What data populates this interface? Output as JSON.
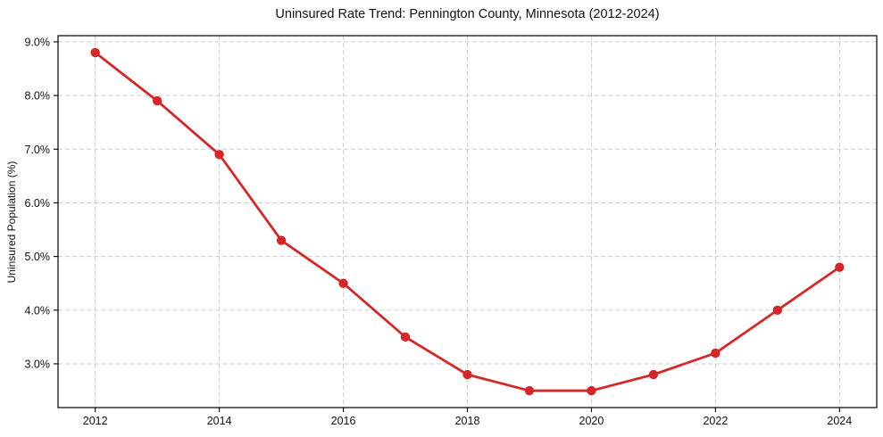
{
  "chart_data": {
    "type": "line",
    "title": "Uninsured Rate Trend: Pennington County, Minnesota (2012-2024)",
    "xlabel": "",
    "ylabel": "Uninsured Population (%)",
    "x": [
      2012,
      2013,
      2014,
      2015,
      2016,
      2017,
      2018,
      2019,
      2020,
      2021,
      2022,
      2023,
      2024
    ],
    "values": [
      8.8,
      7.9,
      6.9,
      5.3,
      4.5,
      3.5,
      2.8,
      2.5,
      2.5,
      2.8,
      3.2,
      4.0,
      4.8
    ],
    "x_tick_values": [
      2012,
      2014,
      2016,
      2018,
      2020,
      2022,
      2024
    ],
    "x_tick_labels": [
      "2012",
      "2014",
      "2016",
      "2018",
      "2020",
      "2022",
      "2024"
    ],
    "y_tick_values": [
      3.0,
      4.0,
      5.0,
      6.0,
      7.0,
      8.0,
      9.0
    ],
    "y_tick_labels": [
      "3.0%",
      "4.0%",
      "5.0%",
      "6.0%",
      "7.0%",
      "8.0%",
      "9.0%"
    ],
    "xlim": [
      2011.4,
      2024.6
    ],
    "ylim": [
      2.185,
      9.115
    ],
    "grid": true,
    "grid_style": "dashed",
    "legend": false,
    "colors": {
      "line": "#d62728",
      "marker": "#d62728",
      "grid": "#cdcdcd",
      "axis": "#000000",
      "text": "#111111",
      "background": "#ffffff"
    }
  }
}
